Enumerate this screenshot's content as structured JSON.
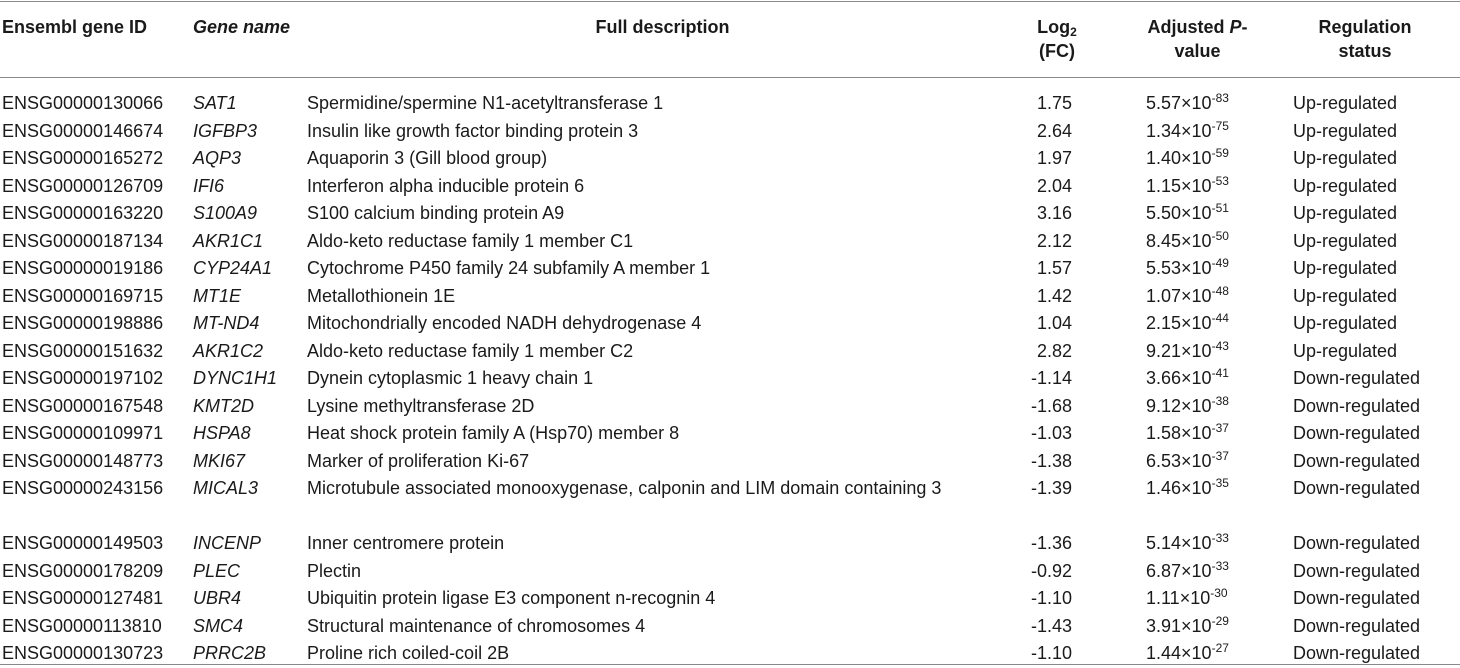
{
  "header": {
    "ensembl_id": "Ensembl gene ID",
    "gene_name": "Gene name",
    "description": "Full description",
    "log2_a": "Log",
    "log2_sub": "2",
    "log2_b": "(FC)",
    "adj_a": "Adjusted ",
    "adj_p": "P",
    "adj_dash": "-",
    "adj_b": "value",
    "reg_a": "Regulation",
    "reg_b": "status"
  },
  "rows": [
    {
      "id": "ENSG00000130066",
      "name": "SAT1",
      "desc": "Spermidine/spermine N1-acetyltransferase 1",
      "fc": "1.75",
      "p_mant": "5.57×10",
      "p_exp": "-83",
      "status": "Up-regulated"
    },
    {
      "id": "ENSG00000146674",
      "name": "IGFBP3",
      "desc": "Insulin like growth factor binding protein 3",
      "fc": "2.64",
      "p_mant": "1.34×10",
      "p_exp": "-75",
      "status": "Up-regulated"
    },
    {
      "id": "ENSG00000165272",
      "name": "AQP3",
      "desc": "Aquaporin 3 (Gill blood group)",
      "fc": "1.97",
      "p_mant": "1.40×10",
      "p_exp": "-59",
      "status": "Up-regulated"
    },
    {
      "id": "ENSG00000126709",
      "name": "IFI6",
      "desc": "Interferon alpha inducible protein 6",
      "fc": "2.04",
      "p_mant": "1.15×10",
      "p_exp": "-53",
      "status": "Up-regulated"
    },
    {
      "id": "ENSG00000163220",
      "name": "S100A9",
      "desc": "S100 calcium binding protein A9",
      "fc": "3.16",
      "p_mant": "5.50×10",
      "p_exp": "-51",
      "status": "Up-regulated"
    },
    {
      "id": "ENSG00000187134",
      "name": "AKR1C1",
      "desc": "Aldo-keto reductase family 1 member C1",
      "fc": "2.12",
      "p_mant": "8.45×10",
      "p_exp": "-50",
      "status": "Up-regulated"
    },
    {
      "id": "ENSG00000019186",
      "name": "CYP24A1",
      "desc": "Cytochrome P450 family 24 subfamily A member 1",
      "fc": "1.57",
      "p_mant": "5.53×10",
      "p_exp": "-49",
      "status": "Up-regulated"
    },
    {
      "id": "ENSG00000169715",
      "name": "MT1E",
      "desc": "Metallothionein 1E",
      "fc": "1.42",
      "p_mant": "1.07×10",
      "p_exp": "-48",
      "status": "Up-regulated"
    },
    {
      "id": "ENSG00000198886",
      "name": "MT-ND4",
      "desc": "Mitochondrially encoded NADH dehydrogenase 4",
      "fc": "1.04",
      "p_mant": "2.15×10",
      "p_exp": "-44",
      "status": "Up-regulated"
    },
    {
      "id": "ENSG00000151632",
      "name": "AKR1C2",
      "desc": "Aldo-keto reductase family 1 member C2",
      "fc": "2.82",
      "p_mant": "9.21×10",
      "p_exp": "-43",
      "status": "Up-regulated"
    },
    {
      "id": "ENSG00000197102",
      "name": "DYNC1H1",
      "desc": "Dynein cytoplasmic 1 heavy chain 1",
      "fc": "-1.14",
      "p_mant": "3.66×10",
      "p_exp": "-41",
      "status": "Down-regulated"
    },
    {
      "id": "ENSG00000167548",
      "name": "KMT2D",
      "desc": "Lysine methyltransferase 2D",
      "fc": "-1.68",
      "p_mant": "9.12×10",
      "p_exp": "-38",
      "status": "Down-regulated"
    },
    {
      "id": "ENSG00000109971",
      "name": "HSPA8",
      "desc": "Heat shock protein family A (Hsp70) member 8",
      "fc": "-1.03",
      "p_mant": "1.58×10",
      "p_exp": "-37",
      "status": "Down-regulated"
    },
    {
      "id": "ENSG00000148773",
      "name": "MKI67",
      "desc": "Marker of proliferation Ki-67",
      "fc": "-1.38",
      "p_mant": "6.53×10",
      "p_exp": "-37",
      "status": "Down-regulated"
    },
    {
      "id": "ENSG00000243156",
      "name": "MICAL3",
      "desc": "Microtubule associated monooxygenase, calponin and LIM domain containing 3",
      "fc": "-1.39",
      "p_mant": "1.46×10",
      "p_exp": "-35",
      "status": "Down-regulated"
    },
    {
      "id": "ENSG00000149503",
      "name": "INCENP",
      "desc": "Inner centromere protein",
      "fc": "-1.36",
      "p_mant": "5.14×10",
      "p_exp": "-33",
      "status": "Down-regulated"
    },
    {
      "id": "ENSG00000178209",
      "name": "PLEC",
      "desc": "Plectin",
      "fc": "-0.92",
      "p_mant": "6.87×10",
      "p_exp": "-33",
      "status": "Down-regulated"
    },
    {
      "id": "ENSG00000127481",
      "name": "UBR4",
      "desc": "Ubiquitin protein ligase E3 component n-recognin 4",
      "fc": "-1.10",
      "p_mant": "1.11×10",
      "p_exp": "-30",
      "status": "Down-regulated"
    },
    {
      "id": "ENSG00000113810",
      "name": "SMC4",
      "desc": "Structural maintenance of chromosomes 4",
      "fc": "-1.43",
      "p_mant": "3.91×10",
      "p_exp": "-29",
      "status": "Down-regulated"
    },
    {
      "id": "ENSG00000130723",
      "name": "PRRC2B",
      "desc": "Proline rich coiled-coil 2B",
      "fc": "-1.10",
      "p_mant": "1.44×10",
      "p_exp": "-27",
      "status": "Down-regulated"
    }
  ]
}
